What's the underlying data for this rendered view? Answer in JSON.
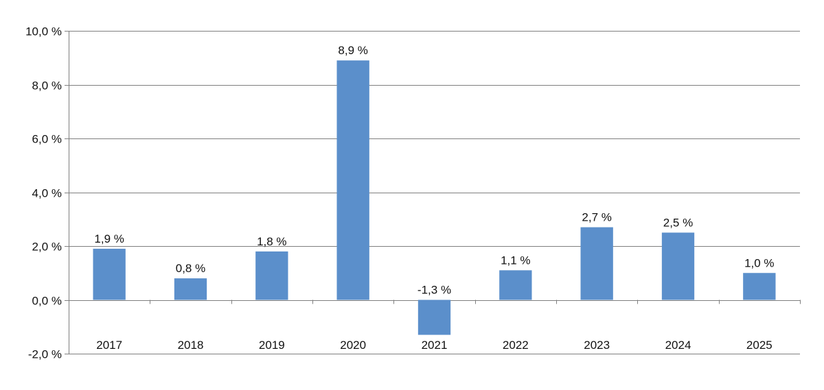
{
  "chart_data": {
    "type": "bar",
    "title": "",
    "xlabel": "",
    "ylabel": "",
    "categories": [
      "2017",
      "2018",
      "2019",
      "2020",
      "2021",
      "2022",
      "2023",
      "2024",
      "2025"
    ],
    "values": [
      1.9,
      0.8,
      1.8,
      8.9,
      -1.3,
      1.1,
      2.7,
      2.5,
      1.0
    ],
    "data_labels": [
      "1,9 %",
      "0,8 %",
      "1,8 %",
      "8,9 %",
      "-1,3 %",
      "1,1 %",
      "2,7 %",
      "2,5 %",
      "1,0 %"
    ],
    "ylim": [
      -2,
      10
    ],
    "yticks": [
      -2,
      0,
      2,
      4,
      6,
      8,
      10
    ],
    "ytick_labels": [
      "-2,0 %",
      "0,0 %",
      "2,0 %",
      "4,0 %",
      "6,0 %",
      "8,0 %",
      "10,0 %"
    ],
    "grid": true,
    "legend": "none",
    "bar_color": "#5b8fcb",
    "grid_color": "#7f7f7f"
  }
}
